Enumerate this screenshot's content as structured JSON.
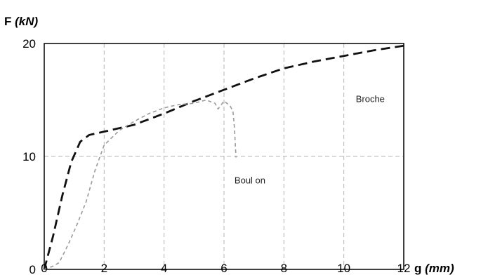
{
  "chart_data": {
    "type": "line",
    "ylabel": {
      "letter": "F",
      "unit": "(kN)"
    },
    "xlabel": {
      "letter": "g",
      "unit": "(mm)"
    },
    "xlim": [
      0,
      12
    ],
    "ylim": [
      0,
      20
    ],
    "x_ticks": [
      "0",
      "2",
      "4",
      "6",
      "8",
      "10",
      "12"
    ],
    "y_ticks": [
      "0",
      "10",
      "20"
    ],
    "x_grid": [
      2,
      4,
      6,
      8,
      10
    ],
    "y_grid": [
      10
    ],
    "series": [
      {
        "name": "Broche",
        "color": "#111111",
        "style": "long-dash",
        "label_at": [
          10.4,
          14.8
        ],
        "points": [
          [
            0,
            0
          ],
          [
            0.3,
            3
          ],
          [
            0.6,
            6.5
          ],
          [
            0.9,
            9.5
          ],
          [
            1.2,
            11.3
          ],
          [
            1.5,
            11.9
          ],
          [
            2,
            12.2
          ],
          [
            3,
            12.8
          ],
          [
            4,
            13.8
          ],
          [
            5,
            14.9
          ],
          [
            6,
            15.9
          ],
          [
            7,
            16.9
          ],
          [
            8,
            17.8
          ],
          [
            9,
            18.4
          ],
          [
            10,
            18.9
          ],
          [
            11,
            19.4
          ],
          [
            12,
            19.8
          ]
        ]
      },
      {
        "name": "Boul on",
        "color": "#9a9a9a",
        "style": "short-dash",
        "label_at": [
          6.35,
          7.6
        ],
        "points": [
          [
            0,
            0
          ],
          [
            0.3,
            0.3
          ],
          [
            0.5,
            0.6
          ],
          [
            0.8,
            2.2
          ],
          [
            1.1,
            4
          ],
          [
            1.4,
            6
          ],
          [
            1.7,
            8.8
          ],
          [
            2,
            11
          ],
          [
            2.5,
            12.3
          ],
          [
            3,
            13.1
          ],
          [
            3.5,
            13.8
          ],
          [
            4,
            14.3
          ],
          [
            4.5,
            14.6
          ],
          [
            5,
            14.7
          ],
          [
            5.4,
            15
          ],
          [
            5.7,
            14.7
          ],
          [
            5.8,
            14.2
          ],
          [
            6,
            14.9
          ],
          [
            6.2,
            14.5
          ],
          [
            6.3,
            14
          ],
          [
            6.35,
            12.5
          ],
          [
            6.4,
            9.9
          ]
        ]
      }
    ]
  }
}
